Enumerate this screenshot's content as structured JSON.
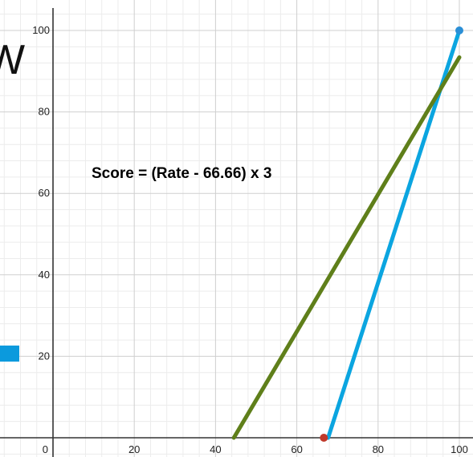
{
  "chart_data": {
    "type": "line",
    "title": "",
    "xlabel": "",
    "ylabel": "",
    "xlim": [
      -12,
      104
    ],
    "ylim": [
      -4,
      106
    ],
    "grid": true,
    "x_ticks": [
      "0",
      "20",
      "40",
      "60",
      "80",
      "100"
    ],
    "y_ticks": [
      "20",
      "40",
      "60",
      "80",
      "100"
    ],
    "annotation": "Score = (Rate - 66.66) x 3",
    "series": [
      {
        "color": "#0BA5E0",
        "points": [
          [
            67.7,
            0
          ],
          [
            100,
            100
          ]
        ],
        "endpoint_color": "#2B8FD6"
      },
      {
        "color": "#5F7F1A",
        "points": [
          [
            44.5,
            0
          ],
          [
            100,
            93.4
          ]
        ]
      }
    ],
    "markers": [
      {
        "x": 66.66,
        "y": 0,
        "color": "#C0392B"
      },
      {
        "x": 100,
        "y": 100,
        "color": "#2B8FD6"
      }
    ],
    "partial_legend": [
      {
        "color": "#0B9ADD",
        "glyph": "W"
      }
    ]
  }
}
